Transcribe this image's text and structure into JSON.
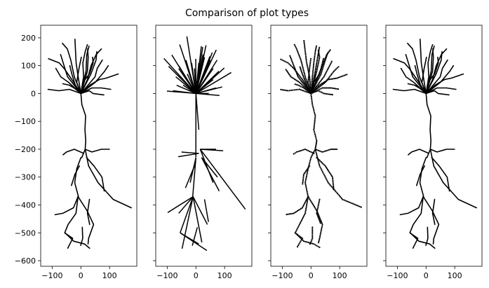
{
  "chart_data": {
    "title": "Comparison of plot types",
    "shared_axes": true,
    "xlim": [
      -140,
      195
    ],
    "ylim": [
      -620,
      245
    ],
    "x_ticks": [
      -100,
      0,
      100
    ],
    "x_tick_labels": [
      "−100",
      "0",
      "100"
    ],
    "y_ticks": [
      200,
      100,
      0,
      -100,
      -200,
      -300,
      -400,
      -500,
      -600
    ],
    "y_tick_labels": [
      "200",
      "100",
      "0",
      "−100",
      "−200",
      "−300",
      "−400",
      "−500",
      "−600"
    ],
    "grid": false,
    "color": "#000000",
    "panels": [
      {
        "type": "line",
        "style": "curved-segments"
      },
      {
        "type": "line",
        "style": "straight-segments"
      },
      {
        "type": "scatter",
        "style": "points"
      },
      {
        "type": "line",
        "style": "curved-segments"
      }
    ],
    "branches": [
      {
        "pts": [
          [
            0,
            0
          ],
          [
            5,
            -40
          ],
          [
            15,
            -80
          ],
          [
            10,
            -130
          ],
          [
            20,
            -170
          ],
          [
            15,
            -200
          ],
          [
            0,
            -230
          ]
        ]
      },
      {
        "pts": [
          [
            15,
            -200
          ],
          [
            30,
            -260
          ],
          [
            60,
            -320
          ],
          [
            110,
            -380
          ],
          [
            180,
            -410
          ]
        ]
      },
      {
        "pts": [
          [
            0,
            -230
          ],
          [
            -10,
            -270
          ],
          [
            -20,
            -320
          ],
          [
            -10,
            -370
          ]
        ]
      },
      {
        "pts": [
          [
            -10,
            -370
          ],
          [
            -30,
            -410
          ],
          [
            -60,
            -430
          ],
          [
            -90,
            -435
          ]
        ]
      },
      {
        "pts": [
          [
            -10,
            -370
          ],
          [
            -20,
            -430
          ],
          [
            -40,
            -470
          ],
          [
            -55,
            -500
          ],
          [
            -30,
            -520
          ],
          [
            -50,
            -555
          ]
        ]
      },
      {
        "pts": [
          [
            -10,
            -370
          ],
          [
            20,
            -420
          ],
          [
            40,
            -470
          ],
          [
            30,
            -520
          ],
          [
            25,
            -540
          ]
        ]
      },
      {
        "pts": [
          [
            -55,
            -500
          ],
          [
            -25,
            -530
          ],
          [
            10,
            -540
          ],
          [
            35,
            -555
          ]
        ]
      },
      {
        "pts": [
          [
            15,
            -200
          ],
          [
            40,
            -210
          ],
          [
            70,
            -200
          ],
          [
            95,
            -200
          ]
        ]
      },
      {
        "pts": [
          [
            10,
            -215
          ],
          [
            -20,
            -200
          ],
          [
            -50,
            -210
          ],
          [
            -65,
            -220
          ]
        ]
      },
      {
        "pts": [
          [
            20,
            -230
          ],
          [
            50,
            -260
          ],
          [
            75,
            -300
          ],
          [
            80,
            -350
          ]
        ]
      },
      {
        "pts": [
          [
            -5,
            -260
          ],
          [
            -25,
            -290
          ],
          [
            -30,
            -330
          ]
        ]
      },
      {
        "pts": [
          [
            30,
            -380
          ],
          [
            20,
            -430
          ],
          [
            35,
            -470
          ]
        ]
      },
      {
        "pts": [
          [
            5,
            -480
          ],
          [
            5,
            -520
          ],
          [
            -5,
            -545
          ]
        ]
      },
      {
        "pts": [
          [
            0,
            0
          ],
          [
            -40,
            15
          ],
          [
            -80,
            10
          ],
          [
            -110,
            15
          ]
        ]
      },
      {
        "pts": [
          [
            0,
            0
          ],
          [
            -30,
            50
          ],
          [
            -60,
            90
          ],
          [
            -80,
            110
          ],
          [
            -110,
            125
          ]
        ]
      },
      {
        "pts": [
          [
            0,
            0
          ],
          [
            -20,
            60
          ],
          [
            -35,
            120
          ],
          [
            -50,
            160
          ],
          [
            -60,
            180
          ]
        ]
      },
      {
        "pts": [
          [
            0,
            0
          ],
          [
            -5,
            60
          ],
          [
            -15,
            110
          ],
          [
            -20,
            150
          ],
          [
            -25,
            195
          ]
        ]
      },
      {
        "pts": [
          [
            0,
            0
          ],
          [
            5,
            60
          ],
          [
            10,
            110
          ],
          [
            15,
            150
          ],
          [
            20,
            175
          ]
        ]
      },
      {
        "pts": [
          [
            0,
            0
          ],
          [
            20,
            50
          ],
          [
            40,
            100
          ],
          [
            55,
            140
          ],
          [
            70,
            160
          ]
        ]
      },
      {
        "pts": [
          [
            0,
            0
          ],
          [
            30,
            30
          ],
          [
            60,
            50
          ],
          [
            90,
            55
          ],
          [
            130,
            70
          ]
        ]
      },
      {
        "pts": [
          [
            0,
            0
          ],
          [
            35,
            70
          ],
          [
            50,
            120
          ],
          [
            60,
            150
          ]
        ]
      },
      {
        "pts": [
          [
            0,
            0
          ],
          [
            40,
            20
          ],
          [
            70,
            20
          ],
          [
            100,
            15
          ]
        ]
      },
      {
        "pts": [
          [
            0,
            0
          ],
          [
            -40,
            40
          ],
          [
            -70,
            60
          ],
          [
            -90,
            90
          ]
        ]
      },
      {
        "pts": [
          [
            0,
            0
          ],
          [
            -10,
            40
          ],
          [
            -5,
            90
          ],
          [
            0,
            130
          ]
        ]
      },
      {
        "pts": [
          [
            0,
            0
          ],
          [
            25,
            10
          ],
          [
            45,
            0
          ],
          [
            80,
            -5
          ]
        ]
      },
      {
        "pts": [
          [
            0,
            0
          ],
          [
            15,
            80
          ],
          [
            25,
            140
          ],
          [
            30,
            170
          ]
        ]
      },
      {
        "pts": [
          [
            0,
            0
          ],
          [
            -25,
            20
          ],
          [
            -45,
            30
          ],
          [
            -60,
            35
          ]
        ]
      },
      {
        "pts": [
          [
            0,
            0
          ],
          [
            50,
            40
          ],
          [
            80,
            80
          ],
          [
            100,
            100
          ]
        ]
      },
      {
        "pts": [
          [
            0,
            0
          ],
          [
            -45,
            60
          ],
          [
            -60,
            100
          ],
          [
            -75,
            140
          ]
        ]
      },
      {
        "pts": [
          [
            0,
            0
          ],
          [
            10,
            40
          ],
          [
            30,
            70
          ],
          [
            40,
            110
          ],
          [
            45,
            130
          ]
        ]
      },
      {
        "pts": [
          [
            0,
            0
          ],
          [
            -15,
            30
          ],
          [
            -30,
            70
          ],
          [
            -40,
            100
          ]
        ]
      },
      {
        "pts": [
          [
            0,
            0
          ],
          [
            45,
            60
          ],
          [
            60,
            90
          ],
          [
            75,
            120
          ]
        ]
      },
      {
        "pts": [
          [
            0,
            0
          ],
          [
            20,
            80
          ],
          [
            30,
            130
          ],
          [
            25,
            160
          ]
        ]
      }
    ]
  }
}
